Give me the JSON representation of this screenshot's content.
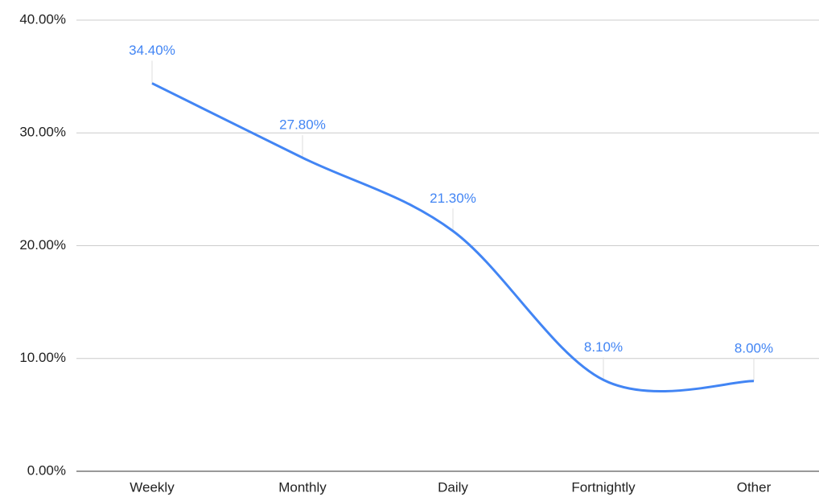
{
  "chart_data": {
    "type": "line",
    "categories": [
      "Weekly",
      "Monthly",
      "Daily",
      "Fortnightly",
      "Other"
    ],
    "series": [
      {
        "color": "#4285f4",
        "values": [
          34.4,
          27.8,
          21.3,
          8.1,
          8.0
        ],
        "value_labels": [
          "34.40%",
          "27.80%",
          "21.30%",
          "8.10%",
          "8.00%"
        ]
      }
    ],
    "ylim": [
      0,
      40
    ],
    "yticks": [
      {
        "value": 0,
        "label": "0.00%"
      },
      {
        "value": 10,
        "label": "10.00%"
      },
      {
        "value": 20,
        "label": "20.00%"
      },
      {
        "value": 30,
        "label": "30.00%"
      },
      {
        "value": 40,
        "label": "40.00%"
      }
    ],
    "grid": true
  }
}
